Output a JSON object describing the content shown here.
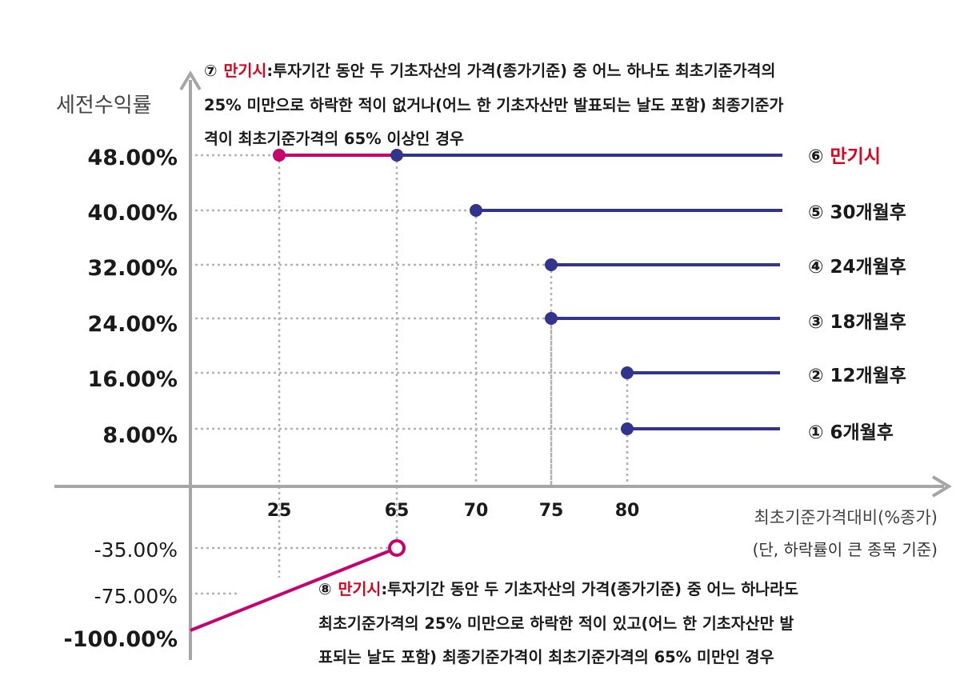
{
  "chart_data": {
    "type": "line",
    "ylabel": "세전수익률",
    "xlabel": "최초기준가격대비(%종가)",
    "xlabel_note": "(단, 하락률이 큰 종목 기준)",
    "y_ticks_positive": [
      "48.00%",
      "40.00%",
      "32.00%",
      "24.00%",
      "16.00%",
      "8.00%"
    ],
    "y_ticks_negative": [
      "-35.00%",
      "-75.00%",
      "-100.00%"
    ],
    "x_ticks": [
      "25",
      "65",
      "70",
      "75",
      "80"
    ],
    "series": [
      {
        "name": "① 6개월후",
        "start_x": 80,
        "y": 8.0
      },
      {
        "name": "② 12개월후",
        "start_x": 80,
        "y": 16.0
      },
      {
        "name": "③ 18개월후",
        "start_x": 75,
        "y": 24.0
      },
      {
        "name": "④ 24개월후",
        "start_x": 75,
        "y": 32.0
      },
      {
        "name": "⑤ 30개월후",
        "start_x": 70,
        "y": 40.0
      },
      {
        "name": "⑥ 만기시",
        "start_x": 65,
        "y": 48.0
      }
    ],
    "maturity_gain": {
      "x": [
        25,
        65
      ],
      "y": 48.0
    },
    "maturity_loss": {
      "x": [
        0,
        65
      ],
      "y": [
        -100.0,
        -35.0
      ]
    },
    "colors": {
      "series": "#33348e",
      "maturity": "#c8006e",
      "axis": "#a6a6a6",
      "red_text": "#e0001b"
    }
  },
  "notes": {
    "note7": {
      "marker": "⑦",
      "title": "만기시",
      "line1": ":투자기간 동안 두 기초자산의 가격(종가기준) 중 어느 하나도 최초기준가격의",
      "line2": "25% 미만으로 하락한 적이 없거나(어느 한 기초자산만 발표되는 날도 포함) 최종기준가",
      "line3": "격이 최초기준가격의 65% 이상인 경우"
    },
    "note8": {
      "marker": "⑧",
      "title": "만기시",
      "line1": ":투자기간 동안 두 기초자산의 가격(종가기준) 중 어느 하나라도",
      "line2": "최초기준가격의 25% 미만으로 하락한 적이 있고(어느 한 기초자산만 발",
      "line3": "표되는 날도 포함) 최종기준가격이 최초기준가격의 65% 미만인 경우"
    }
  }
}
